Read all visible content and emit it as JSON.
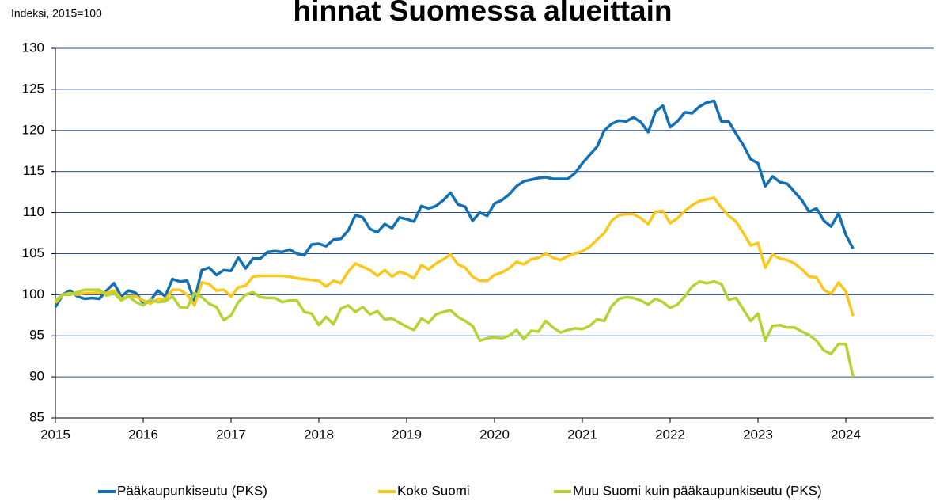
{
  "chart_data": {
    "type": "line",
    "title": "hinnat Suomessa alueittain",
    "y_label": "Indeksi, 2015=100",
    "x": [
      2015,
      2015.083,
      2015.167,
      2015.25,
      2015.333,
      2015.417,
      2015.5,
      2015.583,
      2015.667,
      2015.75,
      2015.833,
      2015.917,
      2016,
      2016.083,
      2016.167,
      2016.25,
      2016.333,
      2016.417,
      2016.5,
      2016.583,
      2016.667,
      2016.75,
      2016.833,
      2016.917,
      2017,
      2017.083,
      2017.167,
      2017.25,
      2017.333,
      2017.417,
      2017.5,
      2017.583,
      2017.667,
      2017.75,
      2017.833,
      2017.917,
      2018,
      2018.083,
      2018.167,
      2018.25,
      2018.333,
      2018.417,
      2018.5,
      2018.583,
      2018.667,
      2018.75,
      2018.833,
      2018.917,
      2019,
      2019.083,
      2019.167,
      2019.25,
      2019.333,
      2019.417,
      2019.5,
      2019.583,
      2019.667,
      2019.75,
      2019.833,
      2019.917,
      2020,
      2020.083,
      2020.167,
      2020.25,
      2020.333,
      2020.417,
      2020.5,
      2020.583,
      2020.667,
      2020.75,
      2020.833,
      2020.917,
      2021,
      2021.083,
      2021.167,
      2021.25,
      2021.333,
      2021.417,
      2021.5,
      2021.583,
      2021.667,
      2021.75,
      2021.833,
      2021.917,
      2022,
      2022.083,
      2022.167,
      2022.25,
      2022.333,
      2022.417,
      2022.5,
      2022.583,
      2022.667,
      2022.75,
      2022.833,
      2022.917,
      2023,
      2023.083,
      2023.167,
      2023.25,
      2023.333,
      2023.417,
      2023.5,
      2023.583,
      2023.667,
      2023.75,
      2023.833,
      2023.917,
      2024,
      2024.083
    ],
    "series": [
      {
        "name": "Pääkaupunkiseutu (PKS)",
        "color": "#1170b5",
        "values": [
          98.5,
          100.0,
          100.5,
          99.8,
          99.5,
          99.6,
          99.5,
          100.5,
          101.4,
          99.8,
          100.5,
          100.2,
          99.0,
          99.3,
          100.5,
          99.8,
          101.9,
          101.6,
          101.7,
          99.3,
          103.0,
          103.3,
          102.4,
          103.0,
          102.9,
          104.5,
          103.2,
          104.4,
          104.4,
          105.2,
          105.3,
          105.2,
          105.5,
          105.0,
          104.8,
          106.1,
          106.2,
          105.9,
          106.7,
          106.8,
          107.8,
          109.7,
          109.4,
          108.0,
          107.6,
          108.6,
          108.1,
          109.4,
          109.2,
          108.9,
          110.8,
          110.5,
          110.8,
          111.5,
          112.4,
          111.0,
          110.7,
          109.0,
          110.0,
          109.6,
          111.1,
          111.5,
          112.2,
          113.2,
          113.8,
          114.0,
          114.2,
          114.3,
          114.1,
          114.1,
          114.1,
          114.8,
          116.0,
          117.0,
          118.0,
          120.0,
          120.8,
          121.2,
          121.1,
          121.6,
          121.0,
          119.8,
          122.3,
          123.0,
          120.4,
          121.1,
          122.2,
          122.1,
          122.9,
          123.4,
          123.6,
          121.1,
          121.1,
          119.6,
          118.2,
          116.5,
          116.0,
          113.2,
          114.4,
          113.7,
          113.5,
          112.5,
          111.5,
          110.1,
          110.5,
          109.0,
          108.3,
          109.9,
          107.3,
          105.6
        ]
      },
      {
        "name": "Koko Suomi",
        "color": "#fbc71b",
        "values": [
          99.0,
          100.0,
          100.2,
          100.0,
          100.2,
          100.2,
          100.3,
          100.2,
          100.5,
          99.5,
          99.8,
          99.8,
          99.3,
          98.9,
          99.5,
          99.4,
          100.6,
          100.6,
          100.0,
          98.7,
          101.5,
          101.3,
          100.5,
          100.6,
          99.8,
          100.9,
          101.1,
          102.2,
          102.3,
          102.3,
          102.3,
          102.3,
          102.2,
          102.0,
          101.9,
          101.8,
          101.7,
          101.0,
          101.7,
          101.4,
          102.8,
          103.8,
          103.4,
          103.0,
          102.3,
          103.0,
          102.2,
          102.8,
          102.5,
          102.0,
          103.6,
          103.1,
          103.8,
          104.3,
          104.9,
          103.7,
          103.3,
          102.2,
          101.7,
          101.7,
          102.4,
          102.7,
          103.2,
          104.0,
          103.7,
          104.3,
          104.5,
          105.0,
          104.5,
          104.2,
          104.7,
          105.0,
          105.3,
          105.8,
          106.7,
          107.5,
          109.0,
          109.7,
          109.8,
          109.8,
          109.3,
          108.6,
          110.1,
          110.2,
          108.7,
          109.3,
          110.2,
          110.9,
          111.4,
          111.6,
          111.8,
          110.6,
          109.6,
          108.9,
          107.5,
          106.0,
          106.3,
          103.3,
          104.9,
          104.4,
          104.2,
          103.8,
          103.1,
          102.2,
          102.1,
          100.6,
          100.1,
          101.5,
          100.4,
          97.4
        ]
      },
      {
        "name": "Muu Suomi kuin pääkaupunkiseutu (PKS)",
        "color": "#b4d334",
        "values": [
          99.3,
          100.0,
          100.0,
          100.3,
          100.6,
          100.6,
          100.6,
          99.9,
          100.2,
          99.3,
          99.8,
          99.1,
          98.7,
          99.4,
          99.1,
          99.2,
          99.8,
          98.5,
          98.4,
          100.2,
          99.7,
          98.9,
          98.5,
          96.9,
          97.5,
          99.1,
          100.0,
          100.3,
          99.7,
          99.6,
          99.6,
          99.1,
          99.3,
          99.3,
          97.9,
          97.7,
          96.3,
          97.3,
          96.4,
          98.3,
          98.7,
          97.9,
          98.5,
          97.6,
          98.0,
          97.0,
          97.1,
          96.6,
          96.1,
          95.7,
          97.1,
          96.6,
          97.6,
          97.9,
          98.1,
          97.3,
          96.8,
          96.2,
          94.4,
          94.7,
          94.8,
          94.7,
          95.0,
          95.7,
          94.6,
          95.6,
          95.5,
          96.8,
          96.0,
          95.4,
          95.7,
          95.9,
          95.8,
          96.2,
          97.0,
          96.8,
          98.6,
          99.5,
          99.7,
          99.6,
          99.3,
          98.8,
          99.5,
          99.1,
          98.4,
          98.8,
          99.8,
          101.0,
          101.6,
          101.4,
          101.6,
          101.3,
          99.4,
          99.6,
          98.2,
          96.8,
          97.7,
          94.4,
          96.2,
          96.3,
          96.0,
          96.0,
          95.5,
          95.1,
          94.4,
          93.2,
          92.8,
          94.0,
          94.0,
          90.0
        ]
      }
    ],
    "xlim": [
      2015,
      2025
    ],
    "xticks": [
      2015,
      2016,
      2017,
      2018,
      2019,
      2020,
      2021,
      2022,
      2023,
      2024
    ],
    "ylim": [
      85,
      130
    ],
    "yticks": [
      85,
      90,
      95,
      100,
      105,
      110,
      115,
      120,
      125,
      130
    ],
    "grid": true,
    "grid_color": "#2b4f8e",
    "legend": "bottom"
  }
}
